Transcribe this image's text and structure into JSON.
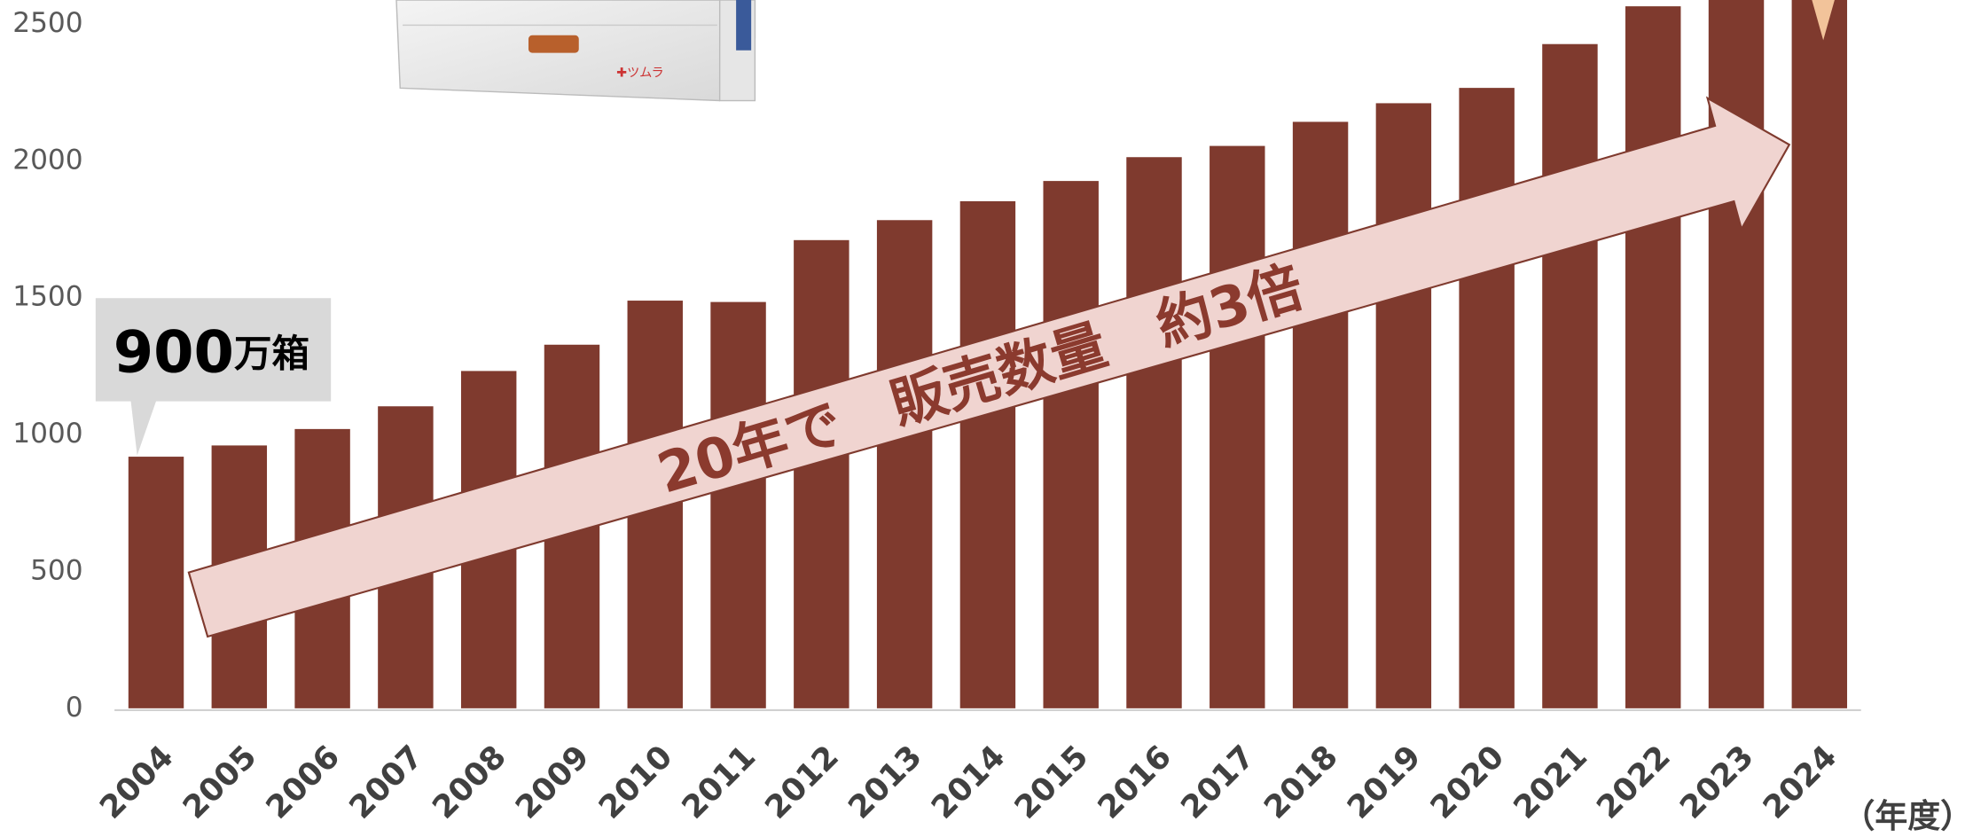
{
  "chart_data": {
    "type": "bar",
    "categories": [
      "2004",
      "2005",
      "2006",
      "2007",
      "2008",
      "2009",
      "2010",
      "2011",
      "2012",
      "2013",
      "2014",
      "2015",
      "2016",
      "2017",
      "2018",
      "2019",
      "2020",
      "2021",
      "2022",
      "2023",
      "2024"
    ],
    "values": [
      919,
      960,
      1020,
      1103,
      1232,
      1328,
      1489,
      1484,
      1710,
      1783,
      1852,
      1926,
      2013,
      2054,
      2142,
      2210,
      2266,
      2426,
      2564,
      2700,
      2800
    ],
    "color": "#7f3a2e",
    "ylim": [
      0,
      2587
    ],
    "yticks": [
      0,
      500,
      1000,
      1500,
      2000,
      2500
    ],
    "x_label": "（年度）",
    "callout": {
      "number": "900",
      "unit": "万箱"
    },
    "arrow_text": "20年で　販売数量　約3倍"
  }
}
